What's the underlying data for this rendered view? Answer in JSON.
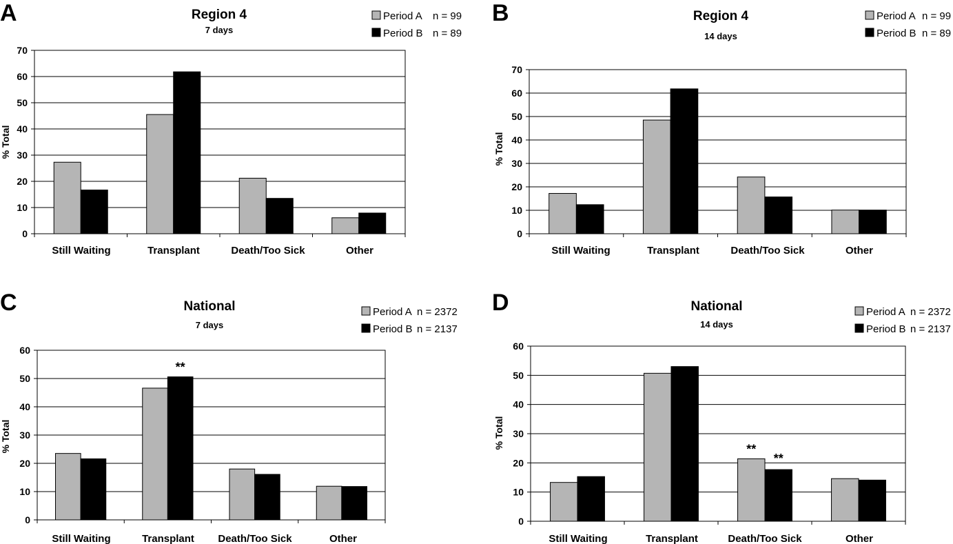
{
  "colors": {
    "period_a": "#b5b5b5",
    "period_b": "#000000",
    "grid": "#000000"
  },
  "chart_data": [
    {
      "panel": "A",
      "type": "bar",
      "title": "Region 4",
      "subtitle": "7 days",
      "ylabel": "% Total",
      "ylim": [
        0,
        70
      ],
      "yticks": [
        0,
        10,
        20,
        30,
        40,
        50,
        60,
        70
      ],
      "categories": [
        "Still Waiting",
        "Transplant",
        "Death/Too Sick",
        "Other"
      ],
      "legend_position": "top-right",
      "series": [
        {
          "name": "Period A",
          "n_label": "n = 99",
          "values": [
            27.3,
            45.5,
            21.2,
            6.1
          ]
        },
        {
          "name": "Period B",
          "n_label": "n = 89",
          "values": [
            16.7,
            61.8,
            13.5,
            7.9
          ]
        }
      ],
      "annotations": []
    },
    {
      "panel": "B",
      "type": "bar",
      "title": "Region 4",
      "subtitle": "14 days",
      "ylabel": "% Total",
      "ylim": [
        0,
        70
      ],
      "yticks": [
        0,
        10,
        20,
        30,
        40,
        50,
        60,
        70
      ],
      "categories": [
        "Still Waiting",
        "Transplant",
        "Death/Too Sick",
        "Other"
      ],
      "legend_position": "top-right",
      "series": [
        {
          "name": "Period A",
          "n_label": "n = 99",
          "values": [
            17.2,
            48.5,
            24.2,
            10.1
          ]
        },
        {
          "name": "Period B",
          "n_label": "n = 89",
          "values": [
            12.4,
            61.8,
            15.7,
            10.1
          ]
        }
      ],
      "annotations": []
    },
    {
      "panel": "C",
      "type": "bar",
      "title": "National",
      "subtitle": "7 days",
      "ylabel": "% Total",
      "ylim": [
        0,
        60
      ],
      "yticks": [
        0,
        10,
        20,
        30,
        40,
        50,
        60
      ],
      "categories": [
        "Still Waiting",
        "Transplant",
        "Death/Too Sick",
        "Other"
      ],
      "legend_position": "top-right",
      "series": [
        {
          "name": "Period A",
          "n_label": "n = 2372",
          "values": [
            23.5,
            46.6,
            18.0,
            11.9
          ]
        },
        {
          "name": "Period B",
          "n_label": "n = 2137",
          "values": [
            21.6,
            50.6,
            16.1,
            11.8
          ]
        }
      ],
      "annotations": [
        {
          "text": "**",
          "category": 1,
          "series": 1
        }
      ]
    },
    {
      "panel": "D",
      "type": "bar",
      "title": "National",
      "subtitle": "14 days",
      "ylabel": "% Total",
      "ylim": [
        0,
        60
      ],
      "yticks": [
        0,
        10,
        20,
        30,
        40,
        50,
        60
      ],
      "categories": [
        "Still Waiting",
        "Transplant",
        "Death/Too Sick",
        "Other"
      ],
      "legend_position": "top-right",
      "series": [
        {
          "name": "Period A",
          "n_label": "n = 2372",
          "values": [
            13.3,
            50.7,
            21.4,
            14.6
          ]
        },
        {
          "name": "Period B",
          "n_label": "n = 2137",
          "values": [
            15.3,
            53.0,
            17.7,
            14.1
          ]
        }
      ],
      "annotations": [
        {
          "text": "**",
          "category": 2,
          "series": 0
        },
        {
          "text": "**",
          "category": 2,
          "series": 1
        }
      ]
    }
  ]
}
